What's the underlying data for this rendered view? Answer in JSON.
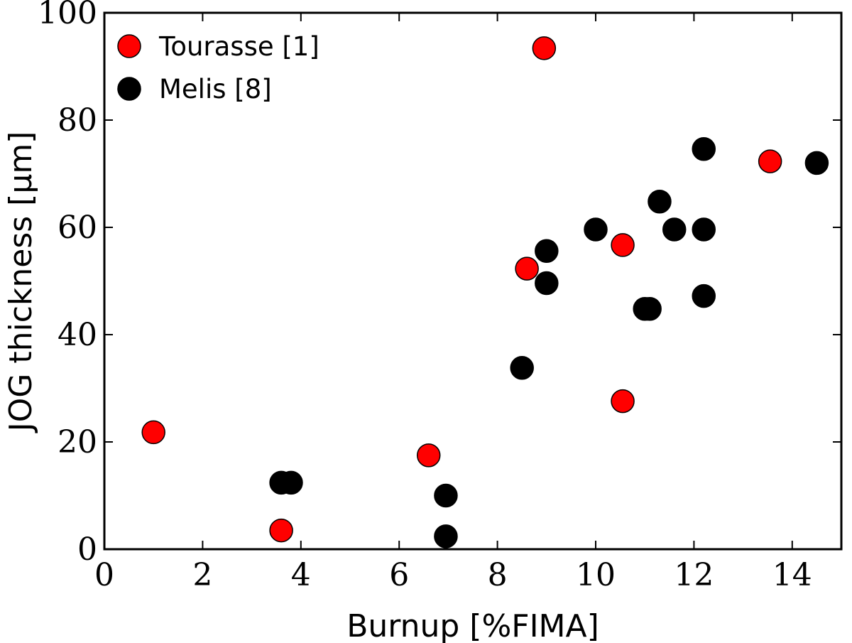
{
  "chart_data": {
    "type": "scatter",
    "title": "",
    "xlabel": "Burnup [%FIMA]",
    "ylabel": "JOG thickness [μm]",
    "xlim": [
      0,
      15
    ],
    "ylim": [
      0,
      100
    ],
    "xticks": [
      0,
      2,
      4,
      6,
      8,
      10,
      12,
      14
    ],
    "yticks": [
      0,
      20,
      40,
      60,
      80,
      100
    ],
    "grid": false,
    "legend_position": "top-left",
    "series": [
      {
        "name": "Tourasse [1]",
        "color": "#ff0000",
        "points": [
          {
            "x": 1.0,
            "y": 21.8
          },
          {
            "x": 3.6,
            "y": 3.5
          },
          {
            "x": 6.6,
            "y": 17.5
          },
          {
            "x": 8.6,
            "y": 52.3
          },
          {
            "x": 8.95,
            "y": 93.4
          },
          {
            "x": 10.55,
            "y": 56.7
          },
          {
            "x": 10.55,
            "y": 27.6
          },
          {
            "x": 13.55,
            "y": 72.3
          }
        ]
      },
      {
        "name": "Melis [8]",
        "color": "#000000",
        "points": [
          {
            "x": 3.6,
            "y": 12.4
          },
          {
            "x": 3.8,
            "y": 12.4
          },
          {
            "x": 6.95,
            "y": 10.0
          },
          {
            "x": 6.95,
            "y": 2.4
          },
          {
            "x": 8.5,
            "y": 33.8
          },
          {
            "x": 9.0,
            "y": 55.6
          },
          {
            "x": 9.0,
            "y": 49.6
          },
          {
            "x": 10.0,
            "y": 59.6
          },
          {
            "x": 11.0,
            "y": 44.8
          },
          {
            "x": 11.1,
            "y": 44.8
          },
          {
            "x": 11.3,
            "y": 64.8
          },
          {
            "x": 11.6,
            "y": 59.6
          },
          {
            "x": 12.2,
            "y": 74.6
          },
          {
            "x": 12.2,
            "y": 59.6
          },
          {
            "x": 12.2,
            "y": 47.2
          },
          {
            "x": 14.5,
            "y": 72.0
          }
        ]
      }
    ]
  }
}
